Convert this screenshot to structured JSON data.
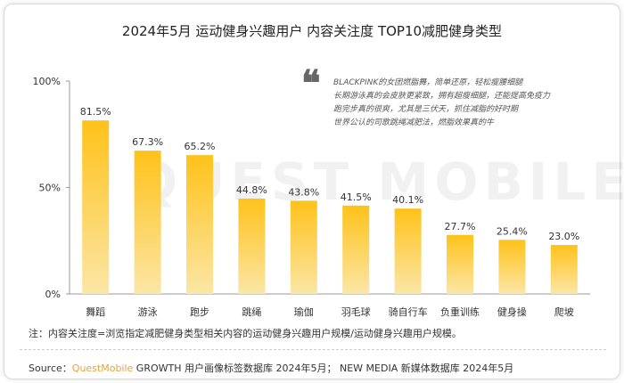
{
  "header": {
    "title": "2024年5月 运动健身兴趣用户 内容关注度 TOP10减肥健身类型"
  },
  "quote": {
    "mark": "❝",
    "lines": [
      "BLACKPINK的女团燃脂舞，简单还原，轻松瘦腰细腿",
      "长期游泳真的会皮肤更紧致，拥有超瘦细腿，还能提高免疫力",
      "跑完步真的很爽，尤其是三伏天，抓住减脂的好时期",
      "世界公认的司歌跳绳减肥法，燃脂效果真的牛"
    ]
  },
  "watermark": "QUEST MOBILE",
  "footer": {
    "note": "注：内容关注度=浏览指定减肥健身类型相关内容的运动健身兴趣用户规模/运动健身兴趣用户规模。",
    "source_prefix": "Source：",
    "source_brand": "QuestMobile",
    "source_rest": " GROWTH 用户画像标签数据库 2024年5月； NEW MEDIA 新媒体数据库 2024年5月"
  },
  "chart_data": {
    "type": "bar",
    "categories": [
      "舞蹈",
      "游泳",
      "跑步",
      "跳绳",
      "瑜伽",
      "羽毛球",
      "骑自行车",
      "负重训练",
      "健身操",
      "爬坡"
    ],
    "values": [
      81.5,
      67.3,
      65.2,
      44.8,
      43.8,
      41.5,
      40.1,
      27.7,
      25.4,
      23.0
    ],
    "value_labels": [
      "81.5%",
      "67.3%",
      "65.2%",
      "44.8%",
      "43.8%",
      "41.5%",
      "40.1%",
      "27.7%",
      "25.4%",
      "23.0%"
    ],
    "y_ticks": [
      0,
      50,
      100
    ],
    "y_tick_labels": [
      "0%",
      "50%",
      "100%"
    ],
    "ylim": [
      0,
      100
    ],
    "grid": false,
    "colors": {
      "bar_top": "#ffc21a",
      "bar_bottom": "#fbe6a6",
      "axis": "#999999"
    }
  }
}
